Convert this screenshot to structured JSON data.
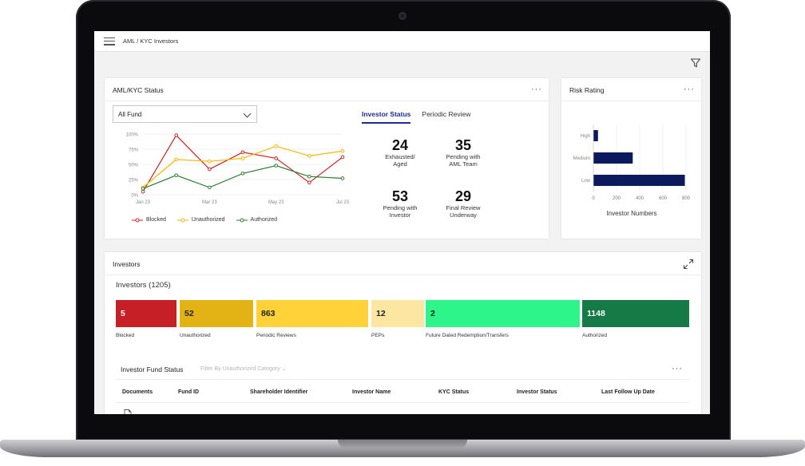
{
  "topbar": {
    "breadcrumb": "AML / KYC Investors"
  },
  "status_card": {
    "title": "AML/KYC Status",
    "fund_select": "All Fund",
    "tabs": [
      {
        "label": "Investor Status",
        "active": true
      },
      {
        "label": "Periodic Review",
        "active": false
      }
    ],
    "stats": [
      {
        "value": "24",
        "label1": "Exhausted/",
        "label2": "Aged"
      },
      {
        "value": "35",
        "label1": "Pending with",
        "label2": "AML Team"
      },
      {
        "value": "53",
        "label1": "Pending with",
        "label2": "Investor"
      },
      {
        "value": "29",
        "label1": "Final Review",
        "label2": "Underway"
      }
    ]
  },
  "chart_data": [
    {
      "type": "line",
      "x": [
        "Jan 23",
        "Feb 23",
        "Mar 23",
        "Apr 23",
        "May 23",
        "Jun 23",
        "Jul 23"
      ],
      "xticks": [
        "Jan 23",
        "Mar 23",
        "May 23",
        "Jul 23"
      ],
      "ylim": [
        0,
        100
      ],
      "yticks": [
        "100%",
        "75%",
        "50%",
        "25%",
        "0%"
      ],
      "series": [
        {
          "name": "Blocked",
          "color": "#c62828",
          "values": [
            5,
            98,
            42,
            70,
            60,
            20,
            62
          ]
        },
        {
          "name": "Unauthorized",
          "color": "#f5b800",
          "values": [
            12,
            58,
            55,
            60,
            80,
            64,
            72
          ]
        },
        {
          "name": "Authorized",
          "color": "#2e7d32",
          "values": [
            10,
            32,
            12,
            35,
            48,
            30,
            27
          ]
        }
      ],
      "legend": "bottom"
    },
    {
      "type": "bar",
      "orientation": "horizontal",
      "title": "Risk Rating",
      "categories": [
        "High",
        "Medium",
        "Low"
      ],
      "values": [
        40,
        340,
        790
      ],
      "xlim": [
        0,
        800
      ],
      "xticks": [
        "0",
        "200",
        "400",
        "600",
        "800"
      ],
      "xlabel": "Investor Numbers",
      "color": "#0b1a5c"
    }
  ],
  "risk_card": {
    "title": "Risk Rating"
  },
  "investors_card": {
    "title": "Investors",
    "count_label": "Investors (1205)",
    "segments": [
      {
        "value": "5",
        "label": "Blocked",
        "color": "#c61f26",
        "text_color": "#ffffff"
      },
      {
        "value": "52",
        "label": "Unauthorized",
        "color": "#e3b214",
        "text_color": "#222222"
      },
      {
        "value": "863",
        "label": "Periodic Reviews",
        "color": "#ffd23a",
        "text_color": "#222222"
      },
      {
        "value": "12",
        "label": "PEPs",
        "color": "#fbe6a2",
        "text_color": "#222222"
      },
      {
        "value": "2",
        "label": "Future Dated Redemption/Transfers",
        "color": "#2df58a",
        "text_color": "#222222"
      },
      {
        "value": "1148",
        "label": "Authorized",
        "color": "#157a46",
        "text_color": "#ffffff"
      }
    ],
    "fund_status": {
      "title": "Investor Fund Status",
      "filter_label": "Filter By Unauthorized Category",
      "columns": [
        "Documents",
        "Fund ID",
        "Shareholder Identifier",
        "Investor Name",
        "KYC Status",
        "Investor Status",
        "Last Follow Up Date"
      ]
    }
  }
}
